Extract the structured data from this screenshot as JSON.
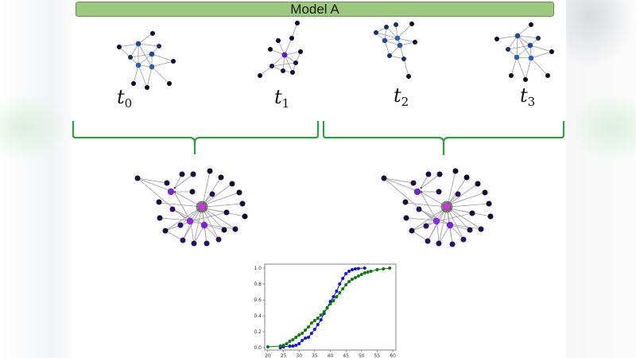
{
  "title": "Model A",
  "colors": {
    "title_bar_fill": "#9dc97e",
    "title_bar_border": "#6d8c5a",
    "bracket": "#2ea043",
    "node_dark": "#0d0a2a",
    "node_blue": "#2f5fb8",
    "node_navy": "#1e3a70",
    "node_purple": "#8a2be2",
    "node_magenta": "#d42ee0",
    "node_indigo": "#2a1060",
    "edge": "#9a9a9a"
  },
  "snapshots": [
    {
      "label": "t",
      "sub": "0"
    },
    {
      "label": "t",
      "sub": "1"
    },
    {
      "label": "t",
      "sub": "2"
    },
    {
      "label": "t",
      "sub": "3"
    }
  ],
  "brackets": [
    {
      "groups": [
        "t0",
        "t1"
      ]
    },
    {
      "groups": [
        "t2",
        "t3"
      ]
    }
  ],
  "aggregated_graphs": [
    {
      "name": "aggregate-t0-t1"
    },
    {
      "name": "aggregate-t2-t3"
    }
  ],
  "chart_data": {
    "type": "line",
    "title": "",
    "xlabel": "",
    "ylabel": "",
    "xlim": [
      19,
      61
    ],
    "ylim": [
      -0.03,
      1.05
    ],
    "x_ticks": [
      20,
      25,
      30,
      35,
      40,
      45,
      50,
      55,
      60
    ],
    "y_ticks": [
      0.0,
      0.2,
      0.4,
      0.6,
      0.8,
      1.0
    ],
    "x_tick_labels": [
      "20",
      "25",
      "30",
      "35",
      "40",
      "45",
      "50",
      "55",
      "60"
    ],
    "y_tick_labels": [
      "0.0",
      "0.2",
      "0.4",
      "0.6",
      "0.8",
      "1.0"
    ],
    "grid": false,
    "legend": null,
    "series": [
      {
        "name": "blue",
        "color": "#1010e0",
        "x": [
          24,
          25,
          27,
          28,
          29,
          30,
          31,
          32,
          33,
          34,
          35,
          36,
          37,
          38,
          39,
          40,
          41,
          42,
          43,
          44,
          45,
          46,
          47,
          48,
          49,
          51
        ],
        "y": [
          0.0,
          0.01,
          0.02,
          0.02,
          0.03,
          0.05,
          0.09,
          0.12,
          0.13,
          0.18,
          0.23,
          0.29,
          0.35,
          0.43,
          0.5,
          0.58,
          0.64,
          0.71,
          0.8,
          0.87,
          0.93,
          0.96,
          0.98,
          0.99,
          0.995,
          1.0
        ]
      },
      {
        "name": "green",
        "color": "#0a7a0a",
        "x": [
          20,
          24,
          25,
          26,
          27,
          28,
          29,
          30,
          31,
          32,
          33,
          34,
          35,
          36,
          37,
          38,
          39,
          40,
          41,
          42,
          43,
          44,
          45,
          46,
          47,
          48,
          49,
          50,
          51,
          52,
          53,
          55,
          57,
          59
        ],
        "y": [
          0.01,
          0.02,
          0.03,
          0.05,
          0.08,
          0.1,
          0.13,
          0.16,
          0.18,
          0.22,
          0.26,
          0.31,
          0.34,
          0.37,
          0.41,
          0.45,
          0.5,
          0.55,
          0.59,
          0.64,
          0.69,
          0.74,
          0.79,
          0.83,
          0.86,
          0.88,
          0.9,
          0.92,
          0.94,
          0.95,
          0.96,
          0.98,
          0.99,
          1.0
        ]
      }
    ]
  }
}
